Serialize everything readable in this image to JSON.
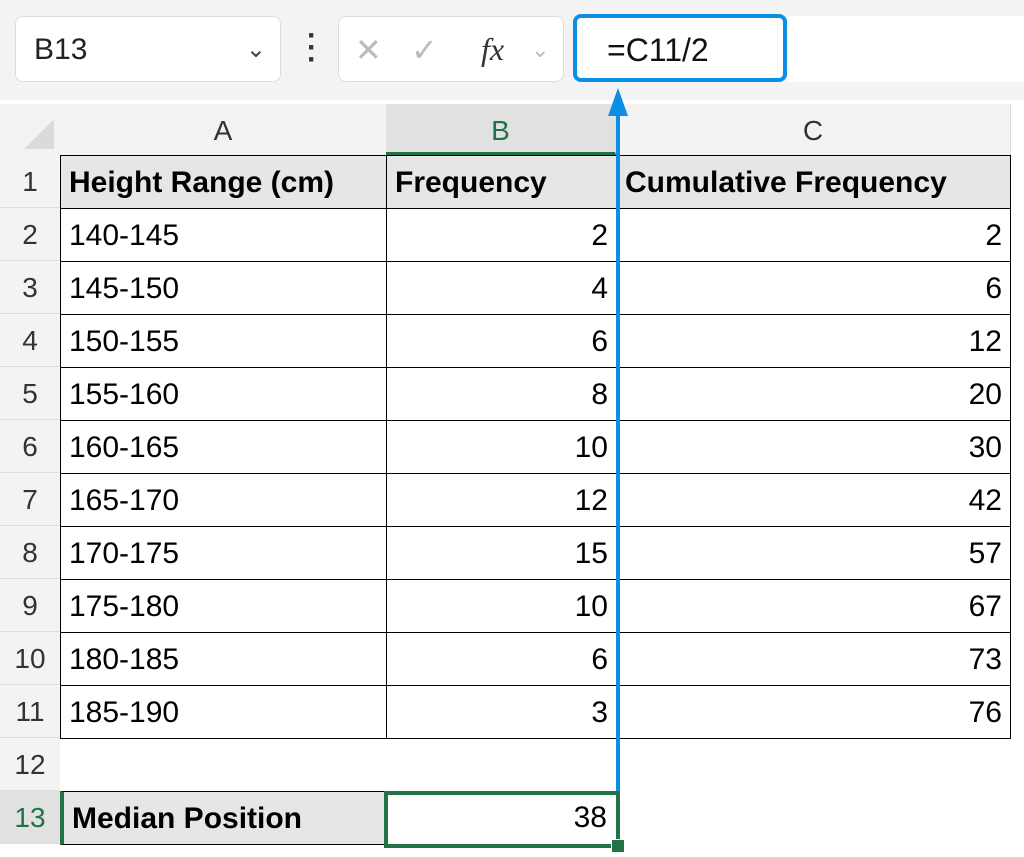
{
  "formula_bar": {
    "name_box": "B13",
    "formula": "=C11/2",
    "fx_label": "fx"
  },
  "columns": [
    "A",
    "B",
    "C"
  ],
  "row_numbers": [
    "1",
    "2",
    "3",
    "4",
    "5",
    "6",
    "7",
    "8",
    "9",
    "10",
    "11",
    "12",
    "13"
  ],
  "headers": [
    "Height Range (cm)",
    "Frequency",
    "Cumulative Frequency"
  ],
  "rows": [
    [
      "140-145",
      "2",
      "2"
    ],
    [
      "145-150",
      "4",
      "6"
    ],
    [
      "150-155",
      "6",
      "12"
    ],
    [
      "155-160",
      "8",
      "20"
    ],
    [
      "160-165",
      "10",
      "30"
    ],
    [
      "165-170",
      "12",
      "42"
    ],
    [
      "170-175",
      "15",
      "57"
    ],
    [
      "175-180",
      "10",
      "67"
    ],
    [
      "180-185",
      "6",
      "73"
    ],
    [
      "185-190",
      "3",
      "76"
    ]
  ],
  "summary": {
    "label": "Median Position",
    "value": "38"
  },
  "colors": {
    "selection": "#217346",
    "annotation_arrow": "#0a8ee8"
  }
}
